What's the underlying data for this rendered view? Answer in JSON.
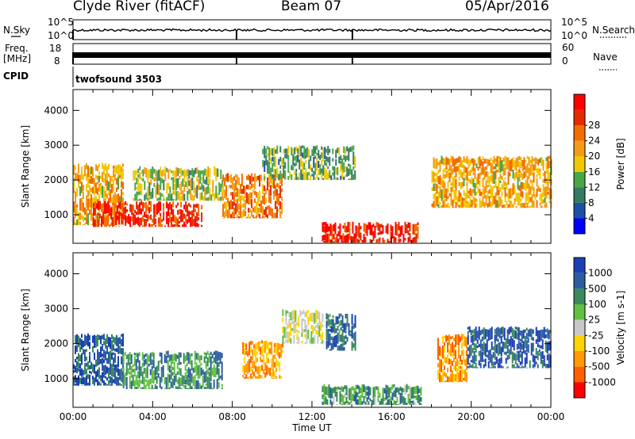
{
  "header": {
    "station": "Clyde River (fitACF)",
    "beam": "Beam 07",
    "date": "05/Apr/2016"
  },
  "strips": {
    "nsky_label": "N.Sky",
    "nsearch_label": "N.Search",
    "nsky_ticks": [
      "10^5",
      "10^0"
    ],
    "nsearch_ticks": [
      "10^5",
      "10^0"
    ],
    "freq_label_top": "Freq.",
    "freq_label_bottom": "[MHz]",
    "freq_ticks": [
      "18",
      "8"
    ],
    "nave_label": "Nave",
    "nave_ticks": [
      "60",
      "0"
    ],
    "cpid_label": "CPID",
    "cpid_value": "twofsound 3503"
  },
  "chart_data": [
    {
      "type": "heatmap",
      "panel": "power",
      "ylabel": "Slant Range [km]",
      "xlabel": "",
      "yticks": [
        "1000",
        "2000",
        "3000",
        "4000"
      ],
      "ylim": [
        180,
        4600
      ],
      "xlim_hours": [
        0,
        24
      ],
      "colorbar_label": "Power [dB]",
      "colorbar_ticks": [
        "4",
        "8",
        "12",
        "16",
        "20",
        "24",
        "28"
      ],
      "colorbar_colors": [
        "#0000ff",
        "#1d4fa7",
        "#357a63",
        "#49a646",
        "#f0c800",
        "#f49b16",
        "#f36d00",
        "#e52a00",
        "#ff0000"
      ],
      "regions": [
        {
          "t0": 0.0,
          "t1": 2.5,
          "r0": 700,
          "r1": 2500,
          "level": 0.6
        },
        {
          "t0": 1.0,
          "t1": 6.5,
          "r0": 650,
          "r1": 1400,
          "level": 0.9
        },
        {
          "t0": 3.0,
          "t1": 7.5,
          "r0": 1400,
          "r1": 2400,
          "level": 0.45
        },
        {
          "t0": 7.5,
          "t1": 10.5,
          "r0": 900,
          "r1": 2200,
          "level": 0.7
        },
        {
          "t0": 9.5,
          "t1": 14.2,
          "r0": 2000,
          "r1": 3000,
          "level": 0.35
        },
        {
          "t0": 12.5,
          "t1": 17.3,
          "r0": 200,
          "r1": 800,
          "level": 0.92
        },
        {
          "t0": 18.0,
          "t1": 24.0,
          "r0": 1200,
          "r1": 2700,
          "level": 0.6
        }
      ]
    },
    {
      "type": "heatmap",
      "panel": "velocity",
      "ylabel": "Slant Range [km]",
      "xlabel": "Time UT",
      "yticks": [
        "1000",
        "2000",
        "3000",
        "4000"
      ],
      "ylim": [
        180,
        4600
      ],
      "xlim_hours": [
        0,
        24
      ],
      "xticks": [
        "00:00",
        "04:00",
        "08:00",
        "12:00",
        "16:00",
        "20:00",
        "00:00"
      ],
      "colorbar_label": "Velocity [m s-1]",
      "colorbar_ticks": [
        "1000",
        "500",
        "100",
        "25",
        "-25",
        "-100",
        "-500",
        "-1000"
      ],
      "colorbar_colors": [
        "#1c3fb4",
        "#2c5d9f",
        "#3a8a5c",
        "#61c040",
        "#c8c8c8",
        "#ffd400",
        "#ff9a00",
        "#ff6000",
        "#ff0000"
      ],
      "regions": [
        {
          "t0": 0.0,
          "t1": 2.5,
          "r0": 800,
          "r1": 2300,
          "level": 0.1
        },
        {
          "t0": 2.5,
          "t1": 7.5,
          "r0": 700,
          "r1": 1800,
          "level": 0.25
        },
        {
          "t0": 8.5,
          "t1": 10.5,
          "r0": 1000,
          "r1": 2100,
          "level": 0.75
        },
        {
          "t0": 10.5,
          "t1": 12.5,
          "r0": 2000,
          "r1": 3000,
          "level": 0.5
        },
        {
          "t0": 12.7,
          "t1": 14.2,
          "r0": 1800,
          "r1": 2900,
          "level": 0.15
        },
        {
          "t0": 12.5,
          "t1": 17.5,
          "r0": 250,
          "r1": 850,
          "level": 0.3
        },
        {
          "t0": 18.3,
          "t1": 19.8,
          "r0": 900,
          "r1": 2300,
          "level": 0.75
        },
        {
          "t0": 19.8,
          "t1": 24.0,
          "r0": 1300,
          "r1": 2500,
          "level": 0.1
        }
      ]
    }
  ]
}
